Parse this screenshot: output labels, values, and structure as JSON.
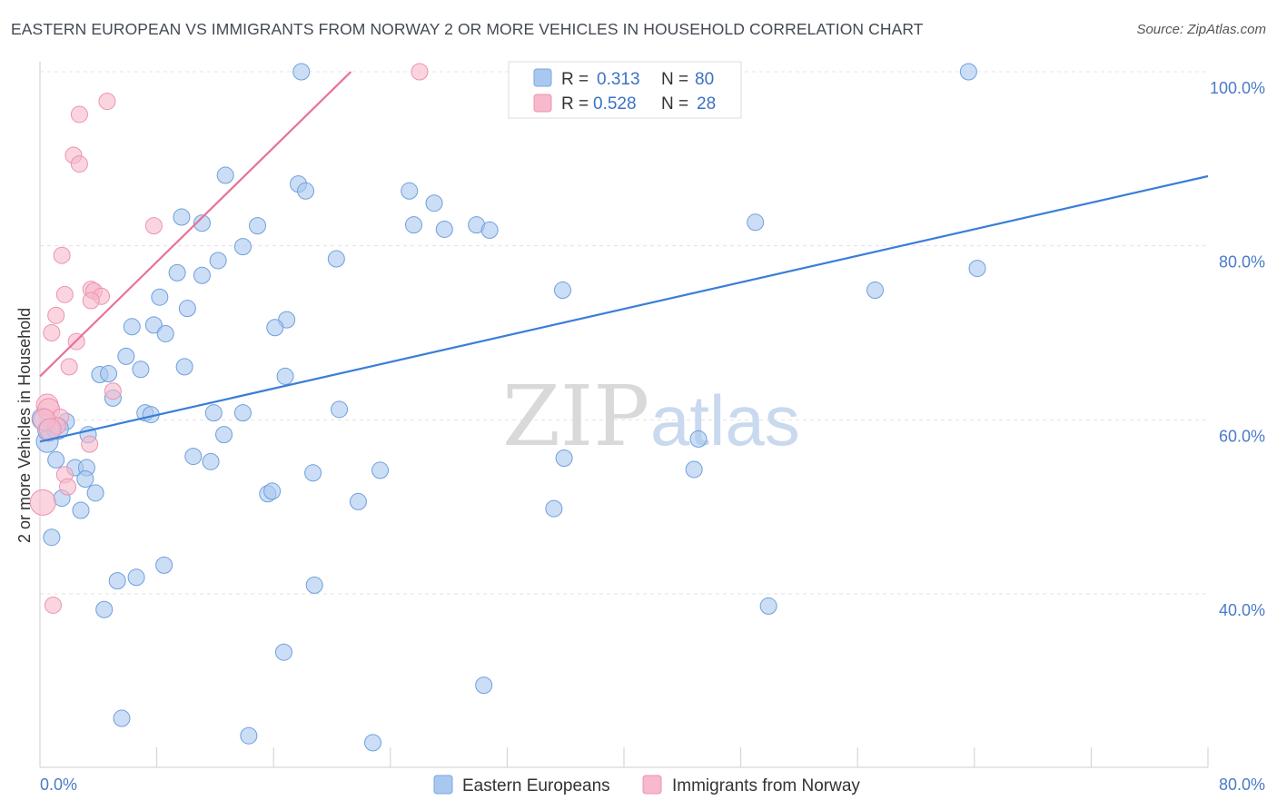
{
  "title": "EASTERN EUROPEAN VS IMMIGRANTS FROM NORWAY 2 OR MORE VEHICLES IN HOUSEHOLD CORRELATION CHART",
  "source": "Source: ZipAtlas.com",
  "watermark": {
    "part1": "ZIP",
    "part2": "atlas"
  },
  "colors": {
    "blue": "#a9c8f0",
    "blue_line": "#3b7dd8",
    "pink": "#f7b9cb",
    "pink_line": "#e8719a",
    "axis_text": "#4a7bc8"
  },
  "legend": {
    "rows": [
      {
        "r_label": "R =",
        "r_value": "0.313",
        "n_label": "N =",
        "n_value": "80"
      },
      {
        "r_label": "R =",
        "r_value": "0.528",
        "n_label": "N =",
        "n_value": "28"
      }
    ]
  },
  "bottom_legend": [
    "Eastern Europeans",
    "Immigrants from Norway"
  ],
  "chart_data": {
    "type": "scatter",
    "title": "EASTERN EUROPEAN VS IMMIGRANTS FROM NORWAY 2 OR MORE VEHICLES IN HOUSEHOLD CORRELATION CHART",
    "xlabel": "",
    "ylabel": "2 or more Vehicles in Household",
    "xlim": [
      0,
      80
    ],
    "ylim": [
      20,
      102
    ],
    "x_tick_labels": [
      "0.0%",
      "80.0%"
    ],
    "y_ticks": [
      40,
      60,
      80,
      100
    ],
    "y_tick_labels": [
      "40.0%",
      "60.0%",
      "80.0%",
      "100.0%"
    ],
    "legend_position": "top-center",
    "series": [
      {
        "name": "Eastern Europeans",
        "r": 0.313,
        "n": 80,
        "trend": {
          "x": [
            0,
            80
          ],
          "y": [
            57.5,
            88.0
          ]
        },
        "points": [
          [
            17.9,
            100
          ],
          [
            39.5,
            100
          ],
          [
            63.6,
            100
          ],
          [
            12.7,
            88.1
          ],
          [
            17.7,
            87.1
          ],
          [
            18.2,
            86.3
          ],
          [
            25.3,
            86.3
          ],
          [
            27.0,
            84.9
          ],
          [
            9.7,
            83.3
          ],
          [
            11.1,
            82.6
          ],
          [
            14.9,
            82.3
          ],
          [
            25.6,
            82.4
          ],
          [
            27.7,
            81.9
          ],
          [
            29.9,
            82.4
          ],
          [
            30.8,
            81.8
          ],
          [
            49.0,
            82.7
          ],
          [
            13.9,
            79.9
          ],
          [
            12.2,
            78.3
          ],
          [
            20.3,
            78.5
          ],
          [
            64.2,
            77.4
          ],
          [
            9.4,
            76.9
          ],
          [
            11.1,
            76.6
          ],
          [
            35.8,
            74.9
          ],
          [
            57.2,
            74.9
          ],
          [
            8.2,
            74.1
          ],
          [
            10.1,
            72.8
          ],
          [
            16.9,
            71.5
          ],
          [
            6.3,
            70.7
          ],
          [
            7.8,
            70.9
          ],
          [
            16.1,
            70.6
          ],
          [
            8.6,
            69.9
          ],
          [
            5.9,
            67.3
          ],
          [
            9.9,
            66.1
          ],
          [
            6.9,
            65.8
          ],
          [
            4.1,
            65.2
          ],
          [
            4.7,
            65.3
          ],
          [
            16.8,
            65.0
          ],
          [
            5.0,
            62.5
          ],
          [
            20.5,
            61.2
          ],
          [
            7.2,
            60.8
          ],
          [
            7.6,
            60.6
          ],
          [
            11.9,
            60.8
          ],
          [
            13.9,
            60.8
          ],
          [
            1.8,
            59.8
          ],
          [
            3.3,
            58.3
          ],
          [
            12.6,
            58.3
          ],
          [
            0.5,
            57.5
          ],
          [
            45.1,
            57.8
          ],
          [
            10.5,
            55.8
          ],
          [
            11.7,
            55.2
          ],
          [
            35.9,
            55.6
          ],
          [
            1.1,
            55.4
          ],
          [
            2.4,
            54.5
          ],
          [
            3.2,
            54.5
          ],
          [
            18.7,
            53.9
          ],
          [
            23.3,
            54.2
          ],
          [
            44.8,
            54.3
          ],
          [
            3.1,
            53.2
          ],
          [
            3.8,
            51.6
          ],
          [
            15.6,
            51.5
          ],
          [
            15.9,
            51.8
          ],
          [
            1.5,
            51.0
          ],
          [
            21.8,
            50.6
          ],
          [
            2.8,
            49.6
          ],
          [
            35.2,
            49.8
          ],
          [
            0.8,
            46.5
          ],
          [
            8.5,
            43.3
          ],
          [
            6.6,
            41.9
          ],
          [
            5.3,
            41.5
          ],
          [
            18.8,
            41.0
          ],
          [
            49.9,
            38.6
          ],
          [
            4.4,
            38.2
          ],
          [
            16.7,
            33.3
          ],
          [
            30.4,
            29.5
          ],
          [
            5.6,
            25.7
          ],
          [
            14.3,
            23.7
          ],
          [
            22.8,
            22.9
          ],
          [
            1.2,
            59.0
          ],
          [
            0.2,
            60.1
          ],
          [
            0.6,
            58.8
          ]
        ]
      },
      {
        "name": "Immigrants from Norway",
        "r": 0.528,
        "n": 28,
        "trend": {
          "x": [
            0,
            21.3
          ],
          "y": [
            65,
            100
          ]
        },
        "points": [
          [
            26.0,
            100
          ],
          [
            4.6,
            96.6
          ],
          [
            2.7,
            95.1
          ],
          [
            2.3,
            90.4
          ],
          [
            2.7,
            89.4
          ],
          [
            7.8,
            82.3
          ],
          [
            1.5,
            78.9
          ],
          [
            3.5,
            75.0
          ],
          [
            3.7,
            74.8
          ],
          [
            1.7,
            74.4
          ],
          [
            4.2,
            74.2
          ],
          [
            3.5,
            73.7
          ],
          [
            1.1,
            72.0
          ],
          [
            0.8,
            70.0
          ],
          [
            2.5,
            69.0
          ],
          [
            2.0,
            66.1
          ],
          [
            5.0,
            63.3
          ],
          [
            0.5,
            61.7
          ],
          [
            0.6,
            61.2
          ],
          [
            1.4,
            60.3
          ],
          [
            1.2,
            59.3
          ],
          [
            3.4,
            57.2
          ],
          [
            1.7,
            53.7
          ],
          [
            1.9,
            52.3
          ],
          [
            0.2,
            50.5
          ],
          [
            0.9,
            38.7
          ],
          [
            0.3,
            60.0
          ],
          [
            0.7,
            58.9
          ]
        ]
      }
    ]
  }
}
